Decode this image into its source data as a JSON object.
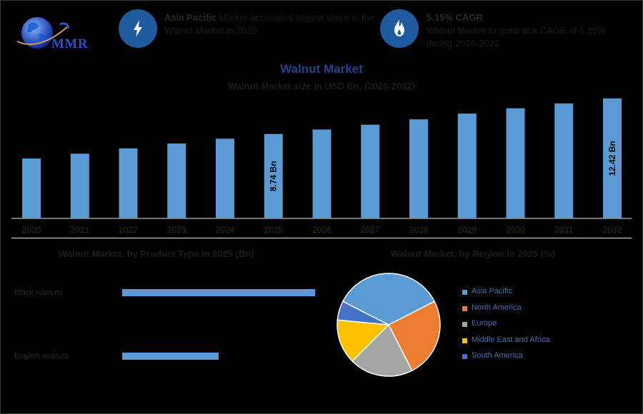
{
  "header": {
    "logo_text": "MMR",
    "highlight1": {
      "bold": "Asia Pacific",
      "text": " Market accounted largest share in the Walnut Market in 2025."
    },
    "highlight2": {
      "bold": "5.15% CAGR",
      "text": "Walnut Market to grow at a CAGR of 5.15% during 2026-2032"
    },
    "icons": [
      "lightning-icon",
      "flame-icon"
    ]
  },
  "colors": {
    "bar": "#5b9bd5",
    "badge": "#1f5a9e",
    "pie": [
      "#5b9bd5",
      "#ed7d31",
      "#a5a5a5",
      "#ffc000",
      "#4472c4"
    ]
  },
  "chart_data": [
    {
      "type": "bar",
      "title": "Walnut Market",
      "subtitle": "Walnut Market size in USD Bn. (2020-2032)",
      "categories": [
        "2020",
        "2021",
        "2022",
        "2023",
        "2024",
        "2025",
        "2026",
        "2027",
        "2028",
        "2029",
        "2030",
        "2031",
        "2032"
      ],
      "values": [
        6.2,
        6.7,
        7.25,
        7.75,
        8.25,
        8.74,
        9.2,
        9.7,
        10.25,
        10.85,
        11.4,
        11.9,
        12.42
      ],
      "data_labels": {
        "5": "8.74 Bn",
        "12": "12.42 Bn"
      },
      "ylim": [
        0,
        13
      ],
      "grid": false
    },
    {
      "type": "bar",
      "orientation": "horizontal",
      "title": "Walnut Market, by Product Type in 2025 (Bn)",
      "categories": [
        "Black walnuts",
        "English walnuts"
      ],
      "values": [
        6.0,
        3.0
      ]
    },
    {
      "type": "pie",
      "title": "Walnut Market, by Region in 2025 (%)",
      "labels": [
        "Asia Pacific",
        "North America",
        "Europe",
        "Middle East and Africa",
        "South America"
      ],
      "values": [
        35,
        25,
        20,
        14,
        6
      ],
      "legend": "right"
    }
  ]
}
